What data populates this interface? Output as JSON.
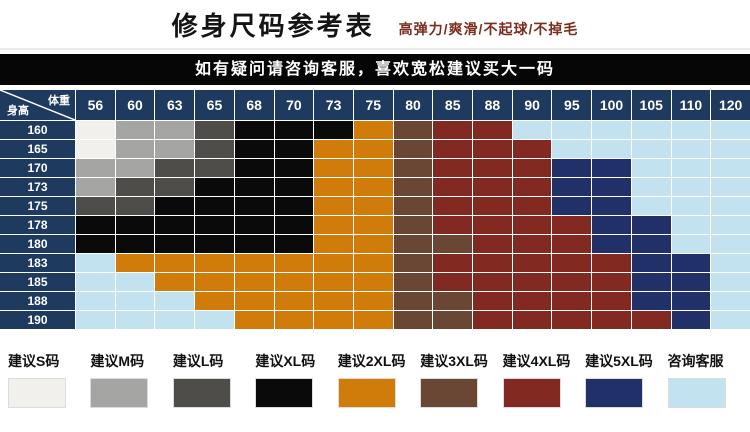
{
  "page": {
    "title": "修身尺码参考表",
    "subtitle": "高弹力/爽滑/不起球/不掉毛",
    "banner": "如有疑问请咨询客服，喜欢宽松建议买大一码"
  },
  "chart_data": {
    "type": "heatmap",
    "title": "修身尺码参考表",
    "x_axis_label": "体重",
    "y_axis_label": "身高",
    "header_color": "#1e3a5f",
    "x_ticks": [
      "56",
      "60",
      "63",
      "65",
      "68",
      "70",
      "73",
      "75",
      "80",
      "85",
      "88",
      "90",
      "95",
      "100",
      "105",
      "110",
      "120"
    ],
    "y_ticks": [
      "160",
      "165",
      "170",
      "173",
      "175",
      "178",
      "180",
      "183",
      "185",
      "188",
      "190"
    ],
    "cell_size_codes": [
      [
        "S",
        "M",
        "M",
        "L",
        "XL",
        "XL",
        "XL",
        "2XL",
        "3XL",
        "4XL",
        "4XL",
        "KF",
        "KF",
        "KF",
        "KF",
        "KF",
        "KF"
      ],
      [
        "S",
        "M",
        "M",
        "L",
        "XL",
        "XL",
        "2XL",
        "2XL",
        "3XL",
        "4XL",
        "4XL",
        "4XL",
        "KF",
        "KF",
        "KF",
        "KF",
        "KF"
      ],
      [
        "M",
        "M",
        "L",
        "L",
        "XL",
        "XL",
        "2XL",
        "2XL",
        "3XL",
        "4XL",
        "4XL",
        "4XL",
        "5XL",
        "5XL",
        "KF",
        "KF",
        "KF"
      ],
      [
        "M",
        "L",
        "L",
        "XL",
        "XL",
        "XL",
        "2XL",
        "2XL",
        "3XL",
        "4XL",
        "4XL",
        "4XL",
        "5XL",
        "5XL",
        "KF",
        "KF",
        "KF"
      ],
      [
        "L",
        "L",
        "XL",
        "XL",
        "XL",
        "XL",
        "2XL",
        "2XL",
        "3XL",
        "4XL",
        "4XL",
        "4XL",
        "5XL",
        "5XL",
        "KF",
        "KF",
        "KF"
      ],
      [
        "XL",
        "XL",
        "XL",
        "XL",
        "XL",
        "XL",
        "2XL",
        "2XL",
        "3XL",
        "4XL",
        "4XL",
        "4XL",
        "4XL",
        "5XL",
        "5XL",
        "KF",
        "KF"
      ],
      [
        "XL",
        "XL",
        "XL",
        "XL",
        "XL",
        "XL",
        "2XL",
        "2XL",
        "3XL",
        "3XL",
        "4XL",
        "4XL",
        "4XL",
        "5XL",
        "5XL",
        "KF",
        "KF"
      ],
      [
        "KF",
        "2XL",
        "2XL",
        "2XL",
        "2XL",
        "2XL",
        "2XL",
        "2XL",
        "3XL",
        "4XL",
        "4XL",
        "4XL",
        "4XL",
        "4XL",
        "5XL",
        "5XL",
        "KF"
      ],
      [
        "KF",
        "KF",
        "2XL",
        "2XL",
        "2XL",
        "2XL",
        "2XL",
        "2XL",
        "3XL",
        "4XL",
        "4XL",
        "4XL",
        "4XL",
        "4XL",
        "5XL",
        "5XL",
        "KF"
      ],
      [
        "KF",
        "KF",
        "KF",
        "2XL",
        "2XL",
        "2XL",
        "2XL",
        "2XL",
        "3XL",
        "3XL",
        "4XL",
        "4XL",
        "4XL",
        "4XL",
        "5XL",
        "5XL",
        "KF"
      ],
      [
        "KF",
        "KF",
        "KF",
        "KF",
        "2XL",
        "2XL",
        "2XL",
        "2XL",
        "3XL",
        "3XL",
        "4XL",
        "4XL",
        "4XL",
        "4XL",
        "4XL",
        "5XL",
        "KF"
      ]
    ],
    "legend": [
      {
        "code": "S",
        "label": "建议S码",
        "color": "#f1f0ec"
      },
      {
        "code": "M",
        "label": "建议M码",
        "color": "#a5a5a3"
      },
      {
        "code": "L",
        "label": "建议L码",
        "color": "#4f4d49"
      },
      {
        "code": "XL",
        "label": "建议XL码",
        "color": "#0a0a0a"
      },
      {
        "code": "2XL",
        "label": "建议2XL码",
        "color": "#d07c0a"
      },
      {
        "code": "3XL",
        "label": "建议3XL码",
        "color": "#6a4734"
      },
      {
        "code": "4XL",
        "label": "建议4XL码",
        "color": "#822a22"
      },
      {
        "code": "5XL",
        "label": "建议5XL码",
        "color": "#22306a"
      },
      {
        "code": "KF",
        "label": "咨询客服",
        "color": "#c3e2ef"
      }
    ]
  }
}
